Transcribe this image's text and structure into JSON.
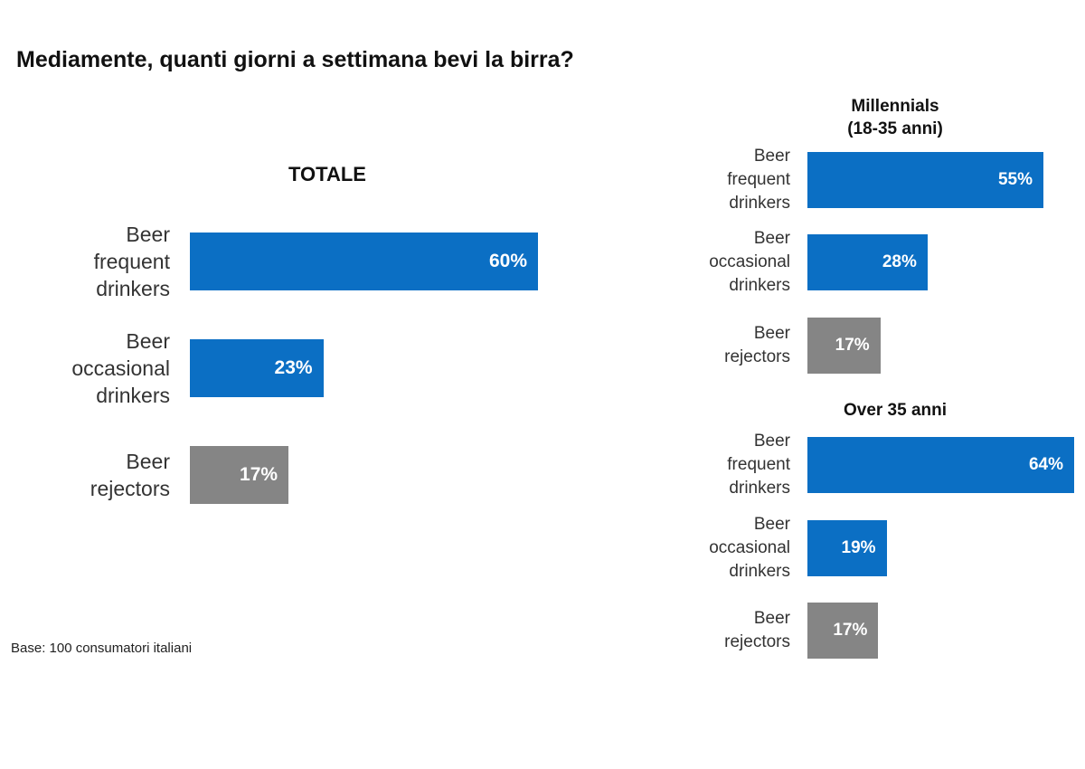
{
  "title": "Mediamente, quanti giorni a settimana bevi la birra?",
  "base_note": "Base: 100 consumatori italiani",
  "colors": {
    "frequent": "#0b6fc4",
    "occasional": "#0b6fc4",
    "rejectors": "#858585"
  },
  "chart_data": [
    {
      "type": "bar",
      "orientation": "horizontal",
      "title": "TOTALE",
      "categories": [
        "Beer\nfrequent\ndrinkers",
        "Beer\noccasional\ndrinkers",
        "Beer\nrejectors"
      ],
      "values": [
        60,
        23,
        17
      ],
      "value_labels": [
        "60%",
        "23%",
        "17%"
      ],
      "xlim": [
        0,
        100
      ]
    },
    {
      "type": "bar",
      "orientation": "horizontal",
      "title": "Millennials\n(18-35 anni)",
      "categories": [
        "Beer\nfrequent\ndrinkers",
        "Beer\noccasional\ndrinkers",
        "Beer\nrejectors"
      ],
      "values": [
        55,
        28,
        17
      ],
      "value_labels": [
        "55%",
        "28%",
        "17%"
      ],
      "xlim": [
        0,
        100
      ]
    },
    {
      "type": "bar",
      "orientation": "horizontal",
      "title": "Over 35 anni",
      "categories": [
        "Beer\nfrequent\ndrinkers",
        "Beer\noccasional\ndrinkers",
        "Beer\nrejectors"
      ],
      "values": [
        64,
        19,
        17
      ],
      "value_labels": [
        "64%",
        "19%",
        "17%"
      ],
      "xlim": [
        0,
        100
      ]
    }
  ]
}
